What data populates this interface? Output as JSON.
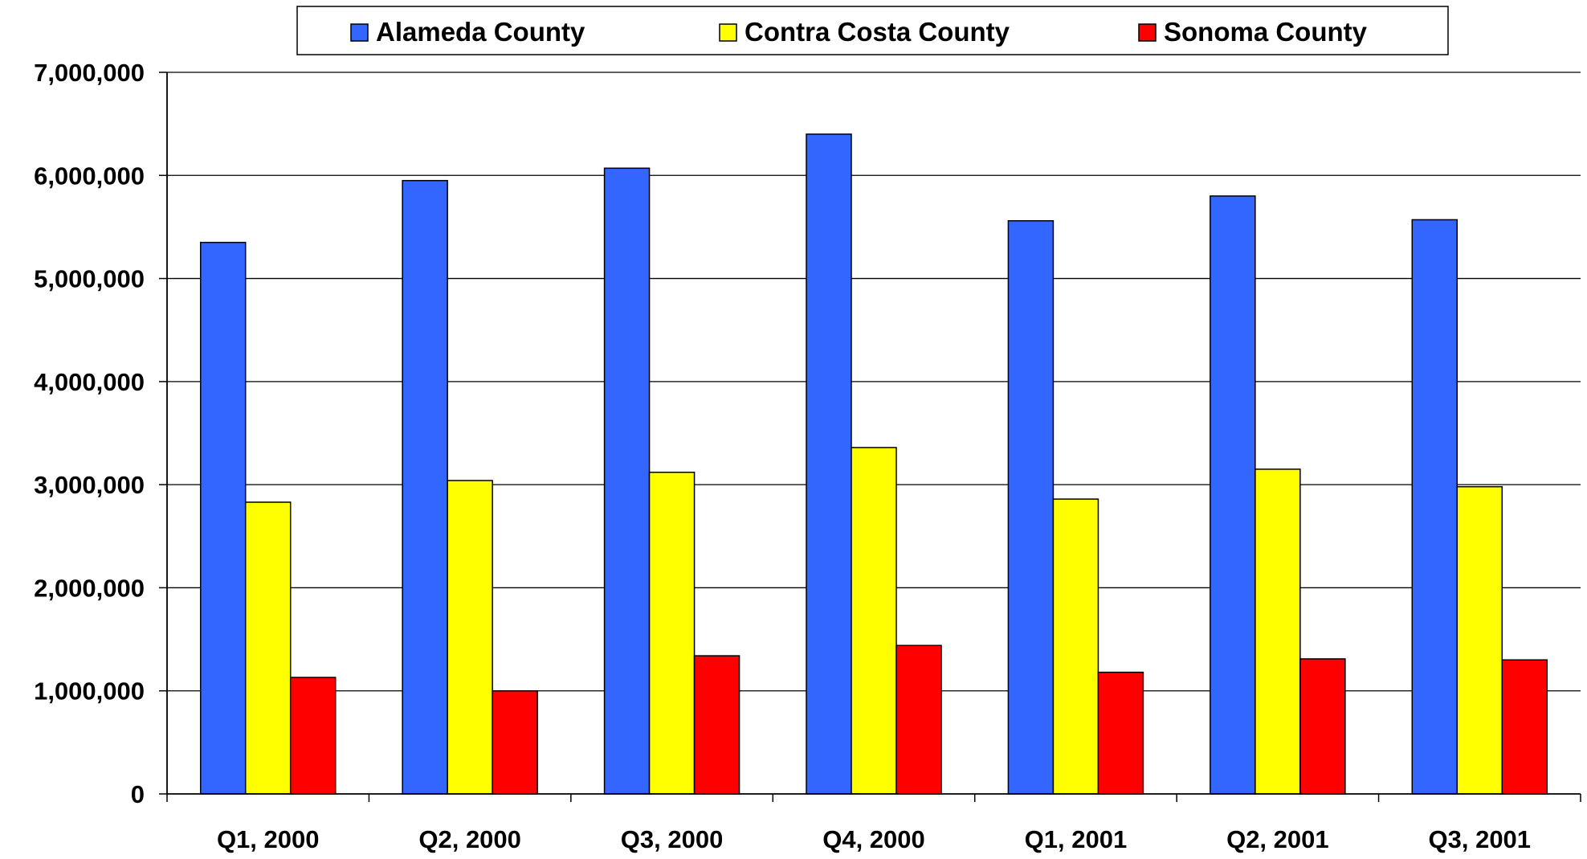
{
  "chart_data": {
    "type": "bar",
    "title": "",
    "xlabel": "",
    "ylabel": "",
    "categories": [
      "Q1, 2000",
      "Q2, 2000",
      "Q3, 2000",
      "Q4, 2000",
      "Q1, 2001",
      "Q2, 2001",
      "Q3, 2001"
    ],
    "series": [
      {
        "name": "Alameda County",
        "color": "#3366ff",
        "values": [
          5350000,
          5950000,
          6070000,
          6400000,
          5560000,
          5800000,
          5570000
        ]
      },
      {
        "name": "Contra Costa County",
        "color": "#ffff00",
        "values": [
          2830000,
          3040000,
          3120000,
          3360000,
          2860000,
          3150000,
          2980000
        ]
      },
      {
        "name": "Sonoma County",
        "color": "#ff0000",
        "values": [
          1130000,
          1000000,
          1340000,
          1440000,
          1180000,
          1310000,
          1300000
        ]
      }
    ],
    "ylim": [
      0,
      7000000
    ],
    "yticks": [
      0,
      1000000,
      2000000,
      3000000,
      4000000,
      5000000,
      6000000,
      7000000
    ],
    "ytick_labels": [
      "0",
      "1,000,000",
      "2,000,000",
      "3,000,000",
      "4,000,000",
      "5,000,000",
      "6,000,000",
      "7,000,000"
    ],
    "grid": true,
    "legend_position": "top"
  }
}
